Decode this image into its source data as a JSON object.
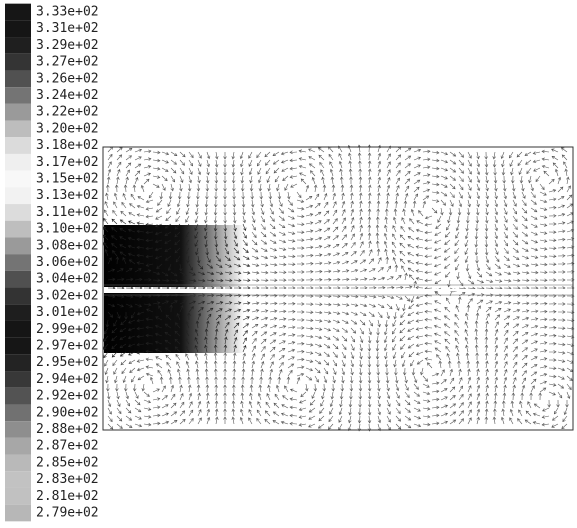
{
  "colorbar": {
    "labels": [
      "3.33e+02",
      "3.31e+02",
      "3.29e+02",
      "3.27e+02",
      "3.26e+02",
      "3.24e+02",
      "3.22e+02",
      "3.20e+02",
      "3.18e+02",
      "3.17e+02",
      "3.15e+02",
      "3.13e+02",
      "3.11e+02",
      "3.10e+02",
      "3.08e+02",
      "3.06e+02",
      "3.04e+02",
      "3.02e+02",
      "3.01e+02",
      "2.99e+02",
      "2.97e+02",
      "2.95e+02",
      "2.94e+02",
      "2.92e+02",
      "2.90e+02",
      "2.88e+02",
      "2.87e+02",
      "2.85e+02",
      "2.83e+02",
      "2.81e+02",
      "2.79e+02"
    ]
  }
}
